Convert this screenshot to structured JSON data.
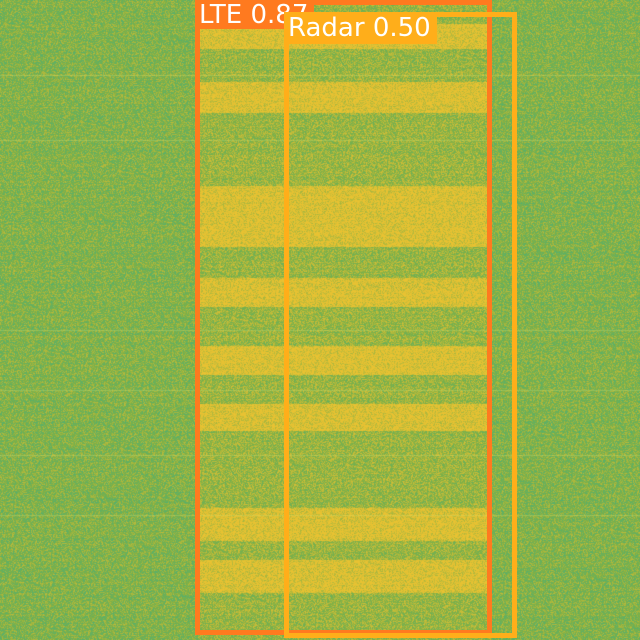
{
  "image": {
    "background_palette": {
      "teal": "#37b08a",
      "green": "#7fb046",
      "yellow": "#e8c232"
    }
  },
  "detections": [
    {
      "label": "LTE",
      "score": "0.87",
      "color": "#ff7a1f"
    },
    {
      "label": "Radar",
      "score": "0.50",
      "color": "#ffae1a"
    }
  ]
}
